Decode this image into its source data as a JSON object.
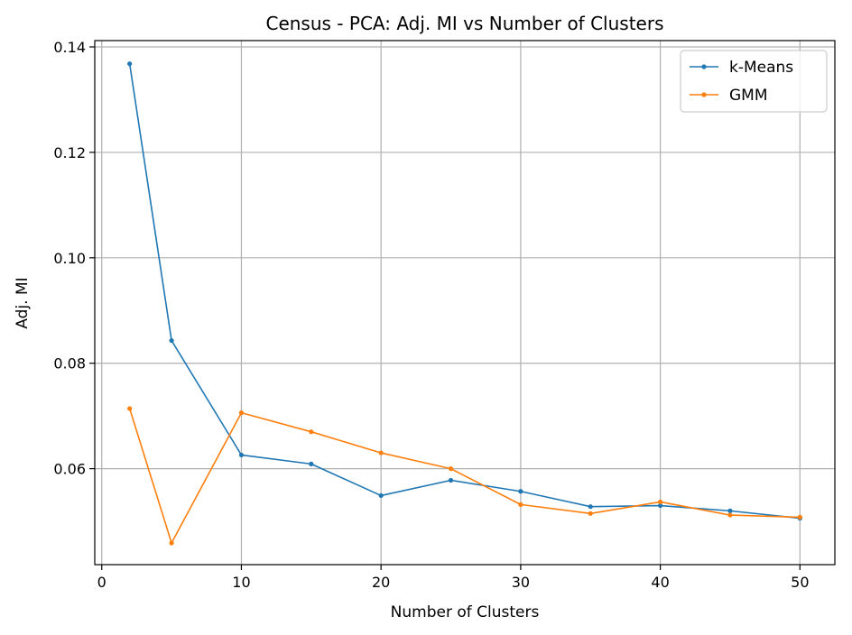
{
  "chart_data": {
    "type": "line",
    "title": "Census - PCA: Adj. MI vs Number of Clusters",
    "xlabel": "Number of Clusters",
    "ylabel": "Adj. MI",
    "xlim": [
      -0.5,
      52.5
    ],
    "ylim": [
      0.0418,
      0.1412
    ],
    "xticks": [
      0,
      10,
      20,
      30,
      40,
      50
    ],
    "yticks": [
      0.06,
      0.08,
      0.1,
      0.12,
      0.14
    ],
    "ytick_labels": [
      "0.06",
      "0.08",
      "0.10",
      "0.12",
      "0.14"
    ],
    "grid": true,
    "legend_position": "top-right",
    "x": [
      2,
      5,
      10,
      15,
      20,
      25,
      30,
      35,
      40,
      45,
      50
    ],
    "series": [
      {
        "name": "k-Means",
        "color": "#1f77b4",
        "values": [
          0.1368,
          0.0843,
          0.0626,
          0.0609,
          0.0549,
          0.0578,
          0.0557,
          0.0528,
          0.053,
          0.052,
          0.0506
        ]
      },
      {
        "name": "GMM",
        "color": "#ff7f0e",
        "values": [
          0.0714,
          0.0459,
          0.0706,
          0.067,
          0.063,
          0.06,
          0.0532,
          0.0515,
          0.0537,
          0.0512,
          0.0508
        ]
      }
    ]
  }
}
